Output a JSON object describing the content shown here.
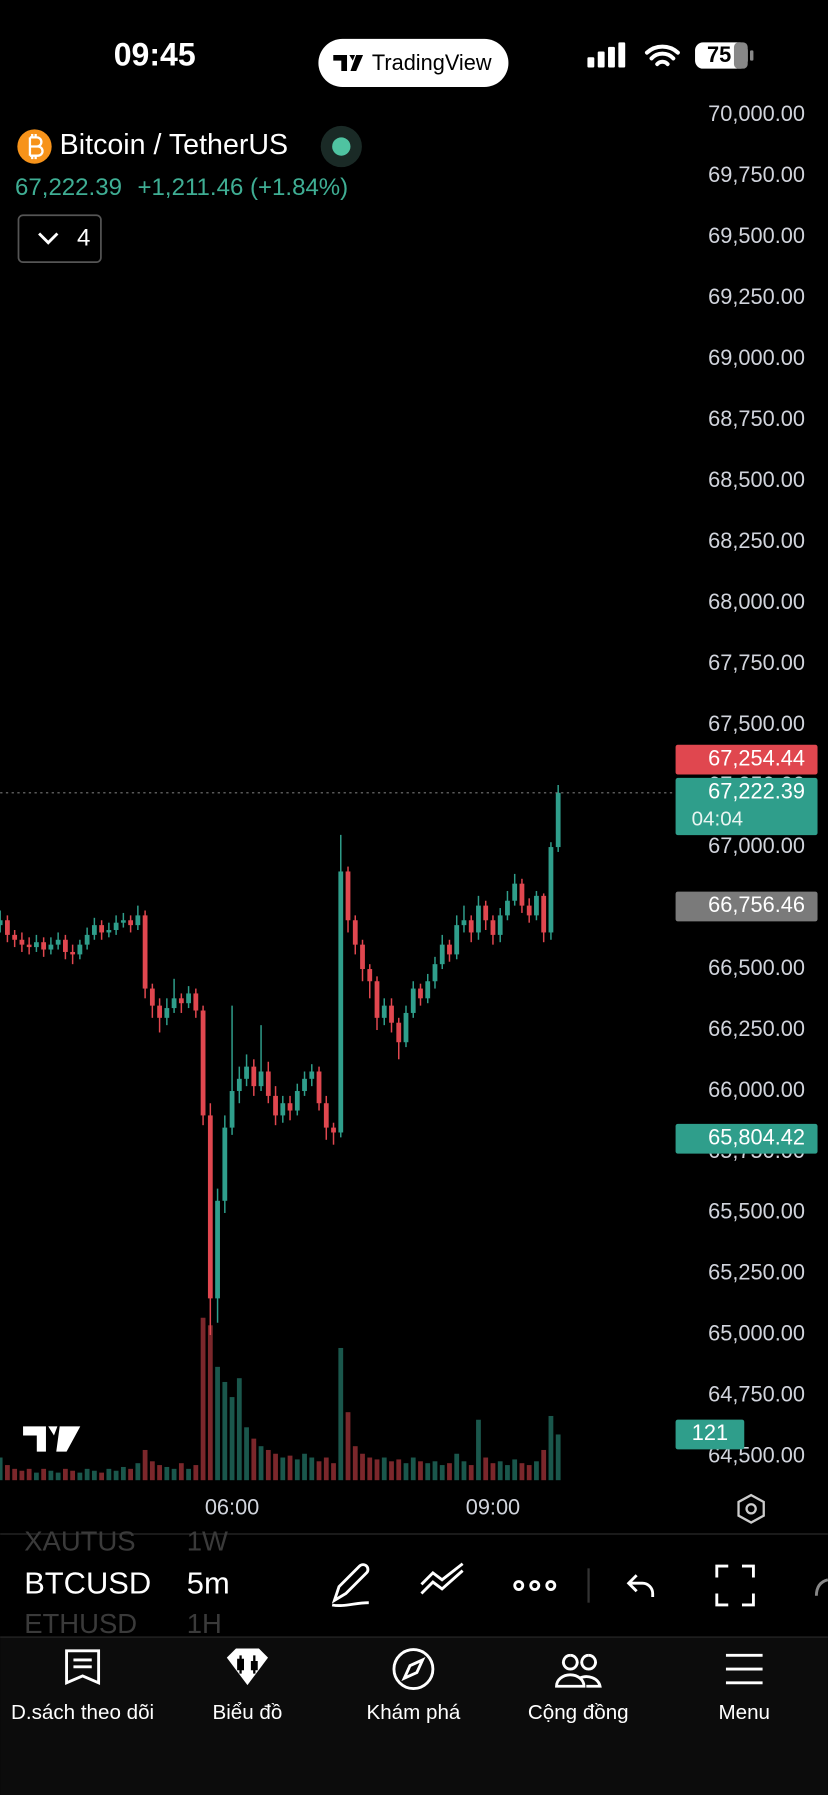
{
  "status_bar": {
    "time": "09:45",
    "battery": "75"
  },
  "brand": "TradingView",
  "symbol": {
    "name": "Bitcoin / TetherUS",
    "price": "67,222.39",
    "change": "+1,211.46 (+1.84%)",
    "indicator_count": "4"
  },
  "chart_data": {
    "type": "candlestick",
    "up_color": "#2f9e8b",
    "down_color": "#e0474f",
    "grid": false,
    "x": [
      200,
      205,
      210,
      215,
      220,
      225,
      230,
      235,
      240,
      245,
      250,
      255,
      260,
      265,
      270,
      275,
      280,
      285,
      290,
      295,
      300,
      305,
      310,
      315,
      320,
      325,
      330,
      335,
      340,
      345,
      350,
      355,
      360,
      365,
      370,
      375,
      380,
      385,
      390,
      395,
      400,
      405,
      410,
      415,
      420,
      425,
      430,
      435,
      440,
      445,
      450,
      455,
      460,
      465,
      470,
      475,
      480,
      485,
      490,
      495,
      500,
      505,
      510,
      515,
      520,
      525,
      530,
      535,
      540,
      545,
      550,
      555,
      560,
      565,
      570,
      575,
      580,
      585
    ],
    "xlim": [
      200,
      666
    ],
    "xticks": [
      {
        "value": 360,
        "label": "06:00"
      },
      {
        "value": 540,
        "label": "09:00"
      }
    ],
    "ylim": [
      64400,
      70050
    ],
    "yticks": [
      {
        "value": 64500,
        "label": "64,500.00"
      },
      {
        "value": 64750,
        "label": "64,750.00"
      },
      {
        "value": 65000,
        "label": "65,000.00"
      },
      {
        "value": 65250,
        "label": "65,250.00"
      },
      {
        "value": 65500,
        "label": "65,500.00"
      },
      {
        "value": 65750,
        "label": "65,750.00"
      },
      {
        "value": 66000,
        "label": "66,000.00"
      },
      {
        "value": 66250,
        "label": "66,250.00"
      },
      {
        "value": 66500,
        "label": "66,500.00"
      },
      {
        "value": 66750,
        "label": "66,750.00"
      },
      {
        "value": 67000,
        "label": "67,000.00"
      },
      {
        "value": 67250,
        "label": "67,250.00"
      },
      {
        "value": 67500,
        "label": "67,500.00"
      },
      {
        "value": 67750,
        "label": "67,750.00"
      },
      {
        "value": 68000,
        "label": "68,000.00"
      },
      {
        "value": 68250,
        "label": "68,250.00"
      },
      {
        "value": 68500,
        "label": "68,500.00"
      },
      {
        "value": 68750,
        "label": "68,750.00"
      },
      {
        "value": 69000,
        "label": "69,000.00"
      },
      {
        "value": 69250,
        "label": "69,250.00"
      },
      {
        "value": 69500,
        "label": "69,500.00"
      },
      {
        "value": 69750,
        "label": "69,750.00"
      },
      {
        "value": 70000,
        "label": "70,000.00"
      }
    ],
    "open": [
      66680,
      66700,
      66640,
      66620,
      66600,
      66590,
      66610,
      66580,
      66600,
      66620,
      66570,
      66560,
      66600,
      66640,
      66680,
      66650,
      66660,
      66690,
      66700,
      66680,
      66720,
      66420,
      66350,
      66300,
      66340,
      66380,
      66360,
      66400,
      66330,
      65900,
      65150,
      65550,
      65850,
      66000,
      66050,
      66100,
      66020,
      66080,
      65980,
      65900,
      65950,
      65920,
      66000,
      66050,
      66080,
      65950,
      65850,
      65830,
      66900,
      66700,
      66600,
      66500,
      66450,
      66300,
      66350,
      66280,
      66200,
      66320,
      66420,
      66380,
      66450,
      66520,
      66600,
      66560,
      66680,
      66700,
      66650,
      66760,
      66700,
      66640,
      66720,
      66780,
      66850,
      66760,
      66720,
      66800,
      66650,
      67000
    ],
    "high": [
      66740,
      66720,
      66660,
      66650,
      66630,
      66640,
      66630,
      66630,
      66650,
      66640,
      66600,
      66620,
      66670,
      66710,
      66700,
      66690,
      66720,
      66730,
      66720,
      66760,
      66740,
      66440,
      66380,
      66380,
      66460,
      66400,
      66430,
      66420,
      66350,
      65950,
      65600,
      65900,
      66350,
      66100,
      66150,
      66130,
      66270,
      66120,
      66020,
      65980,
      65980,
      66030,
      66080,
      66110,
      66100,
      65980,
      65870,
      67050,
      66920,
      66720,
      66620,
      66520,
      66470,
      66380,
      66380,
      66300,
      66350,
      66450,
      66440,
      66480,
      66550,
      66640,
      66620,
      66720,
      66760,
      66720,
      66800,
      66780,
      66720,
      66750,
      66820,
      66890,
      66870,
      66790,
      66820,
      66810,
      67020,
      67254.44
    ],
    "low": [
      66650,
      66610,
      66590,
      66570,
      66560,
      66570,
      66550,
      66560,
      66580,
      66540,
      66520,
      66540,
      66580,
      66620,
      66620,
      66630,
      66640,
      66670,
      66650,
      66660,
      66380,
      66300,
      66240,
      66270,
      66320,
      66320,
      66340,
      66300,
      65860,
      65000,
      65050,
      65500,
      65820,
      65950,
      66020,
      65980,
      66000,
      65950,
      65860,
      65870,
      65880,
      65900,
      65980,
      66020,
      65920,
      65800,
      65780,
      65810,
      66650,
      66560,
      66450,
      66380,
      66250,
      66270,
      66240,
      66130,
      66180,
      66300,
      66350,
      66360,
      66420,
      66500,
      66530,
      66540,
      66650,
      66610,
      66620,
      66660,
      66600,
      66610,
      66700,
      66760,
      66730,
      66690,
      66700,
      66610,
      66620,
      66980
    ],
    "close": [
      66700,
      66640,
      66620,
      66600,
      66590,
      66610,
      66580,
      66600,
      66620,
      66570,
      66560,
      66600,
      66640,
      66680,
      66650,
      66660,
      66690,
      66700,
      66680,
      66720,
      66420,
      66350,
      66300,
      66340,
      66380,
      66360,
      66400,
      66330,
      65900,
      65150,
      65550,
      65850,
      66000,
      66050,
      66100,
      66020,
      66080,
      65980,
      65900,
      65950,
      65920,
      66000,
      66050,
      66080,
      65950,
      65850,
      65830,
      66900,
      66700,
      66600,
      66500,
      66450,
      66300,
      66350,
      66280,
      66200,
      66320,
      66420,
      66380,
      66450,
      66520,
      66600,
      66560,
      66680,
      66700,
      66650,
      66760,
      66700,
      66640,
      66720,
      66780,
      66850,
      66760,
      66720,
      66800,
      66650,
      67000,
      67222.39
    ],
    "volume": [
      60,
      40,
      30,
      25,
      30,
      20,
      30,
      25,
      20,
      30,
      25,
      20,
      30,
      25,
      20,
      30,
      25,
      35,
      30,
      45,
      80,
      50,
      40,
      35,
      30,
      45,
      30,
      40,
      430,
      410,
      300,
      260,
      220,
      270,
      140,
      110,
      90,
      80,
      70,
      60,
      65,
      55,
      70,
      60,
      50,
      60,
      45,
      350,
      180,
      90,
      70,
      60,
      55,
      60,
      50,
      55,
      45,
      60,
      50,
      45,
      50,
      40,
      45,
      70,
      50,
      40,
      160,
      60,
      45,
      50,
      40,
      55,
      45,
      40,
      50,
      80,
      170,
      121
    ],
    "volume_lim": [
      0,
      600
    ],
    "price_tags": [
      {
        "value": 67254.44,
        "label": "67,254.44",
        "color": "#e0474f"
      },
      {
        "value": 67222.39,
        "label": "67,222.39",
        "countdown": "04:04",
        "color": "#2f9e8b"
      },
      {
        "value": 66756.46,
        "label": "66,756.46",
        "color": "#7a7a7a"
      },
      {
        "value": 65804.42,
        "label": "65,804.42",
        "color": "#2f9e8b"
      }
    ],
    "volume_tag": 121
  },
  "toolbar": {
    "symbols": [
      "XAUTUS",
      "BTCUSD",
      "ETHUSD"
    ],
    "intervals": [
      "1W",
      "5m",
      "1H"
    ]
  },
  "nav": [
    "D.sách theo dõi",
    "Biểu đồ",
    "Khám phá",
    "Cộng đồng",
    "Menu"
  ]
}
